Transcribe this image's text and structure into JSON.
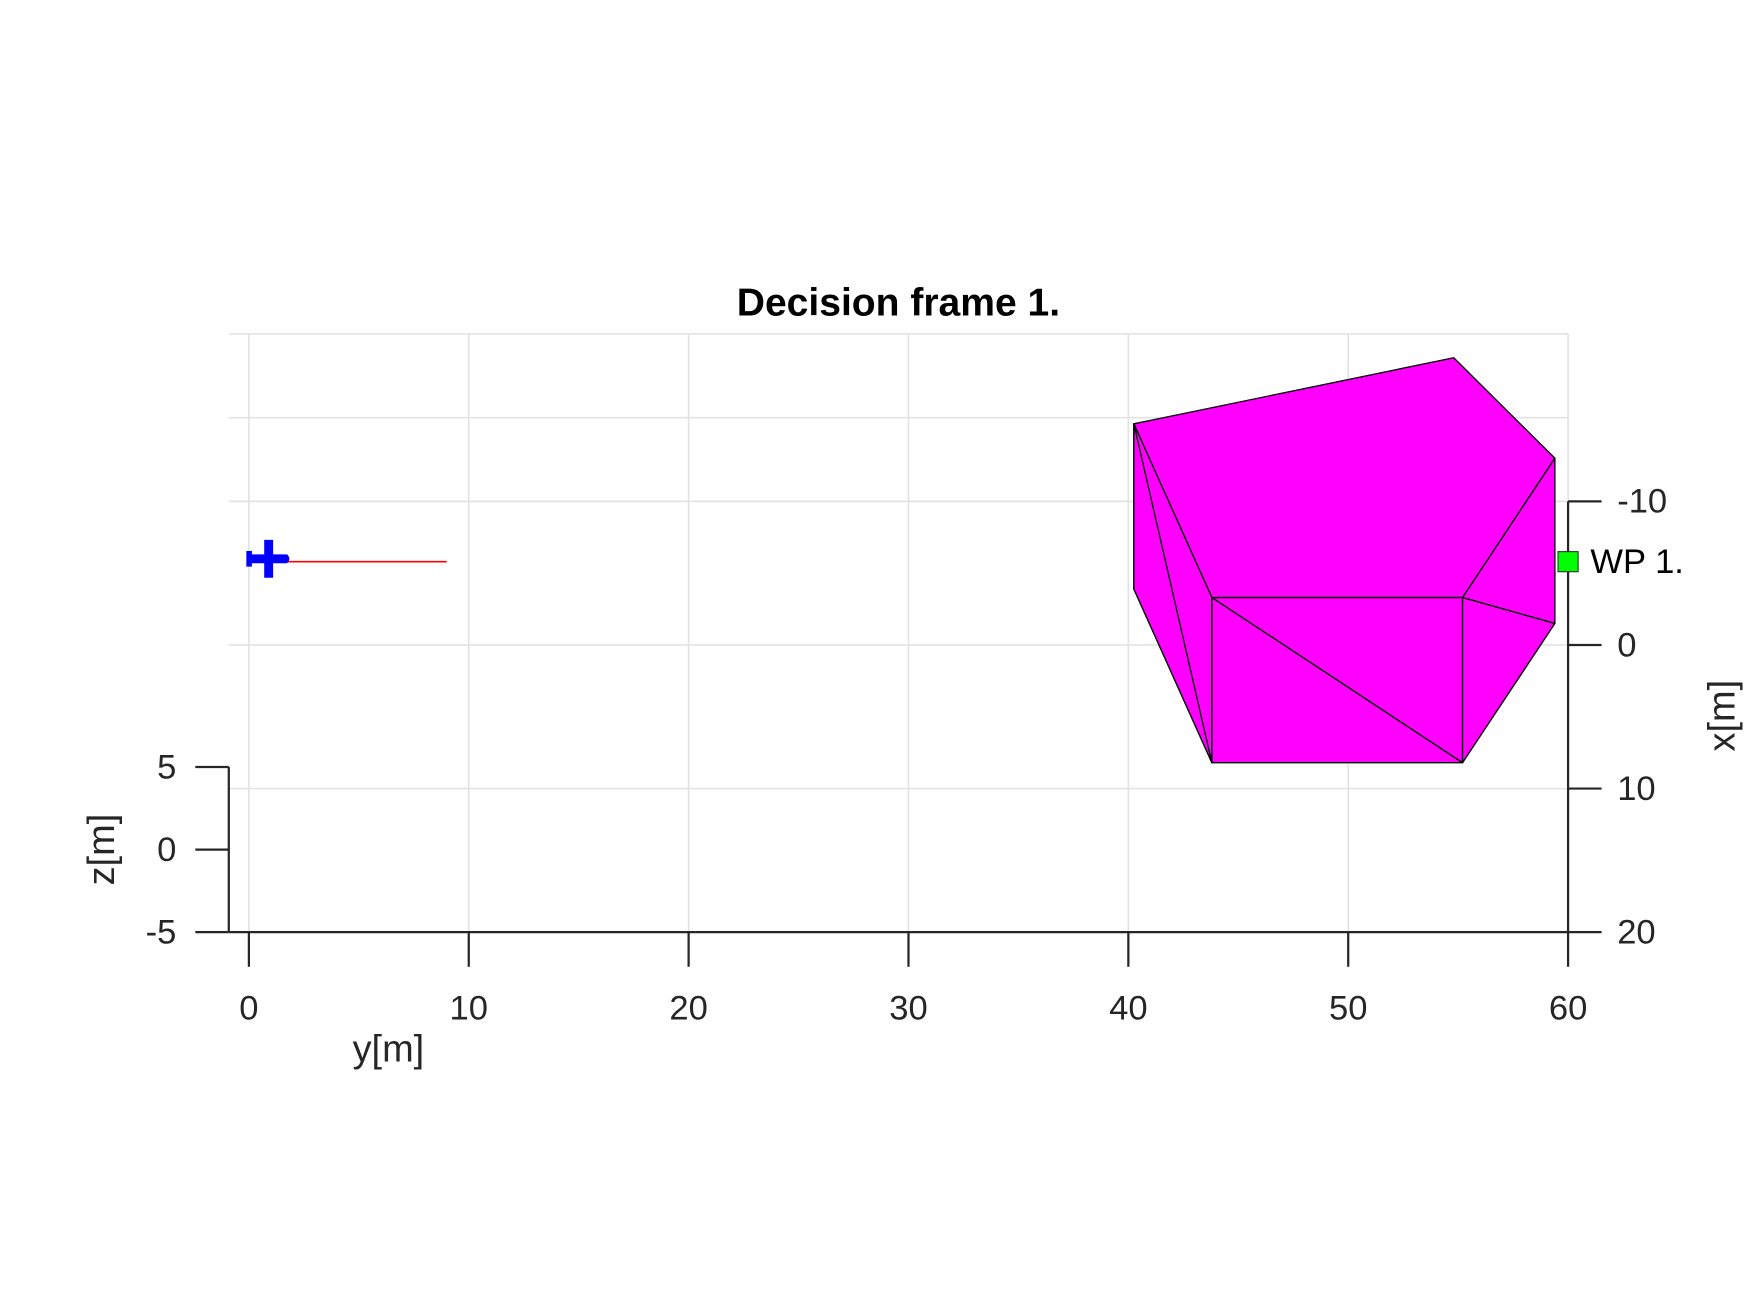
{
  "chart_data": {
    "type": "projection3d",
    "title": "Decision frame 1.",
    "grid": true,
    "axes": {
      "y": {
        "label": "y[m]",
        "lim": [
          0,
          60
        ],
        "ticks": [
          0,
          10,
          20,
          30,
          40,
          50,
          60
        ]
      },
      "x": {
        "label": "x[m]",
        "lim": [
          -10,
          20
        ],
        "ticks": [
          -10,
          0,
          10,
          20
        ]
      },
      "z": {
        "label": "z[m]",
        "lim": [
          -5,
          5
        ],
        "ticks": [
          -5,
          0,
          5
        ]
      }
    },
    "aircraft": {
      "y": 0.9,
      "x": -6,
      "color": "#0000ff"
    },
    "path": {
      "y": [
        1,
        9
      ],
      "x": [
        -5.8,
        -5.8
      ],
      "color": "#ff0000"
    },
    "waypoint": {
      "name": "WP 1.",
      "y": 60,
      "x": -5.8,
      "color": "#00ff00"
    },
    "obstacle": {
      "color": "#ff00ff",
      "faces": [
        {
          "y": [
            40.25,
            54.8,
            59.4,
            55.2,
            43.8
          ],
          "x": [
            -15.4,
            -20.0,
            -13.0,
            -3.3,
            -3.3
          ]
        },
        {
          "y": [
            40.25,
            43.8,
            43.8,
            40.25
          ],
          "x": [
            -15.4,
            -3.3,
            8.2,
            -3.9
          ]
        },
        {
          "y": [
            40.25,
            43.8,
            40.25
          ],
          "x": [
            -15.4,
            8.2,
            -3.9
          ]
        },
        {
          "y": [
            43.8,
            55.2,
            55.2
          ],
          "x": [
            -3.3,
            -3.3,
            8.2
          ]
        },
        {
          "y": [
            43.8,
            55.2,
            43.8
          ],
          "x": [
            -3.3,
            8.2,
            8.2
          ]
        },
        {
          "y": [
            55.2,
            59.4,
            59.4
          ],
          "x": [
            -3.3,
            -13.0,
            -1.5
          ]
        },
        {
          "y": [
            55.2,
            59.4,
            55.2
          ],
          "x": [
            -3.3,
            -1.5,
            8.2
          ]
        }
      ]
    }
  }
}
